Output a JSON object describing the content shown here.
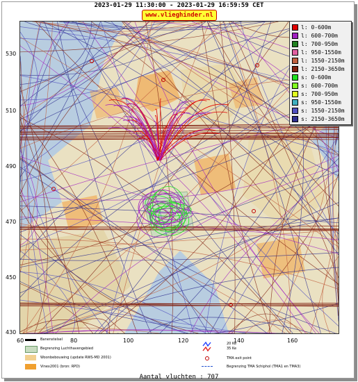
{
  "header": {
    "time_range": "2023-01-29 11:30:00 - 2023-01-29 16:59:59 CET",
    "site": "www.vlieghinder.nl"
  },
  "axes": {
    "y_ticks": [
      "530",
      "510",
      "490",
      "470",
      "450",
      "430"
    ],
    "x_ticks": [
      "60",
      "80",
      "100",
      "120",
      "140",
      "160"
    ]
  },
  "legend": [
    {
      "label": "l: 0-600m",
      "color": "#e00000"
    },
    {
      "label": "l: 600-700m",
      "color": "#a020c0"
    },
    {
      "label": "l: 700-950m",
      "color": "#208020"
    },
    {
      "label": "l: 950-1550m",
      "color": "#e060a0"
    },
    {
      "label": "l: 1550-2150m",
      "color": "#c06040"
    },
    {
      "label": "l: 2150-3650m",
      "color": "#802010"
    },
    {
      "label": "s: 0-600m",
      "color": "#20e020"
    },
    {
      "label": "s: 600-700m",
      "color": "#80ff20"
    },
    {
      "label": "s: 700-950m",
      "color": "#e0ff20"
    },
    {
      "label": "s: 950-1550m",
      "color": "#40b0c0"
    },
    {
      "label": "s: 1550-2150m",
      "color": "#5050c0"
    },
    {
      "label": "s: 2150-3650m",
      "color": "#303090"
    }
  ],
  "bottom_legend": {
    "runway": "Banenstelsel",
    "airport_boundary": "Begrenzing Luchthavengebied",
    "residential": "Woonbebouwing (update RWS-MD 2001)",
    "vinex": "Vinex2001 (bron: RPD)",
    "kv20": "20 Ke",
    "kv35": "35 Ke",
    "tma_exit": "TMA exit point",
    "tma_boundary": "Begrenzing TMA Schiphol  (TMA1 en TMA3)"
  },
  "footer": {
    "count_text": "Aantal vluchten : 707"
  },
  "colors": {
    "water": "#b8cde0",
    "land": "#f2e4bc",
    "urban": "#f0b060",
    "airport": "#c8dcc0"
  }
}
